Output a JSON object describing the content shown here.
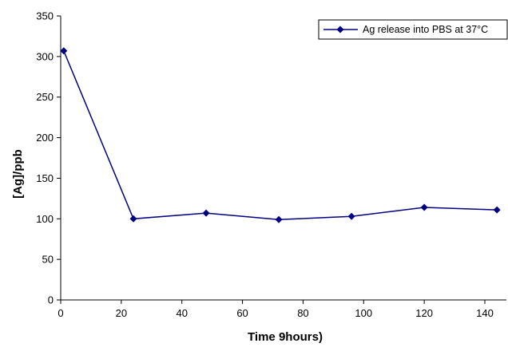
{
  "chart_data": {
    "type": "line",
    "title": "",
    "xlabel": "Time 9hours)",
    "ylabel": "[Ag]/ppb",
    "xlim": [
      0,
      145
    ],
    "ylim": [
      0,
      350
    ],
    "xticks": [
      0,
      20,
      40,
      60,
      80,
      100,
      120,
      140
    ],
    "yticks": [
      0,
      50,
      100,
      150,
      200,
      250,
      300,
      350
    ],
    "grid": false,
    "legend_position": "top-right",
    "series": [
      {
        "name": "Ag release into PBS at 37°C",
        "color": "#000080",
        "marker": "diamond",
        "x": [
          1,
          24,
          48,
          72,
          96,
          120,
          144
        ],
        "y": [
          307,
          100,
          107,
          99,
          103,
          114,
          111
        ]
      }
    ]
  }
}
